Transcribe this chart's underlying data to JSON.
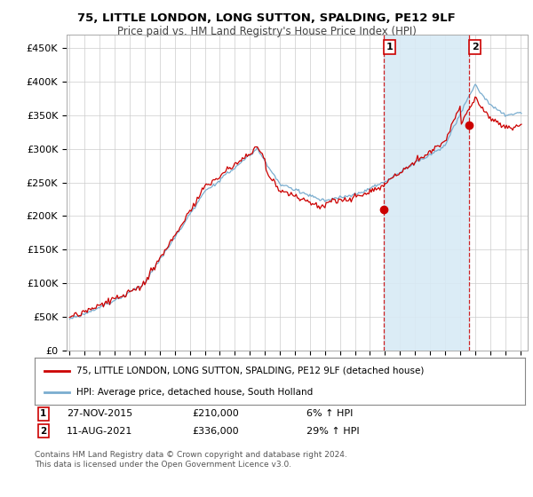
{
  "title": "75, LITTLE LONDON, LONG SUTTON, SPALDING, PE12 9LF",
  "subtitle": "Price paid vs. HM Land Registry's House Price Index (HPI)",
  "ylabel_ticks": [
    "£0",
    "£50K",
    "£100K",
    "£150K",
    "£200K",
    "£250K",
    "£300K",
    "£350K",
    "£400K",
    "£450K"
  ],
  "ytick_values": [
    0,
    50000,
    100000,
    150000,
    200000,
    250000,
    300000,
    350000,
    400000,
    450000
  ],
  "ylim": [
    0,
    470000
  ],
  "xlim_start": 1994.8,
  "xlim_end": 2025.5,
  "sale1_date": 2015.92,
  "sale1_price": 210000,
  "sale2_date": 2021.62,
  "sale2_price": 336000,
  "legend_line1": "75, LITTLE LONDON, LONG SUTTON, SPALDING, PE12 9LF (detached house)",
  "legend_line2": "HPI: Average price, detached house, South Holland",
  "footer": "Contains HM Land Registry data © Crown copyright and database right 2024.\nThis data is licensed under the Open Government Licence v3.0.",
  "price_paid_color": "#cc0000",
  "hpi_color": "#7aadcf",
  "hpi_fill_color": "#d8eaf5",
  "vline_color": "#cc0000",
  "background_color": "#ffffff",
  "grid_color": "#cccccc"
}
